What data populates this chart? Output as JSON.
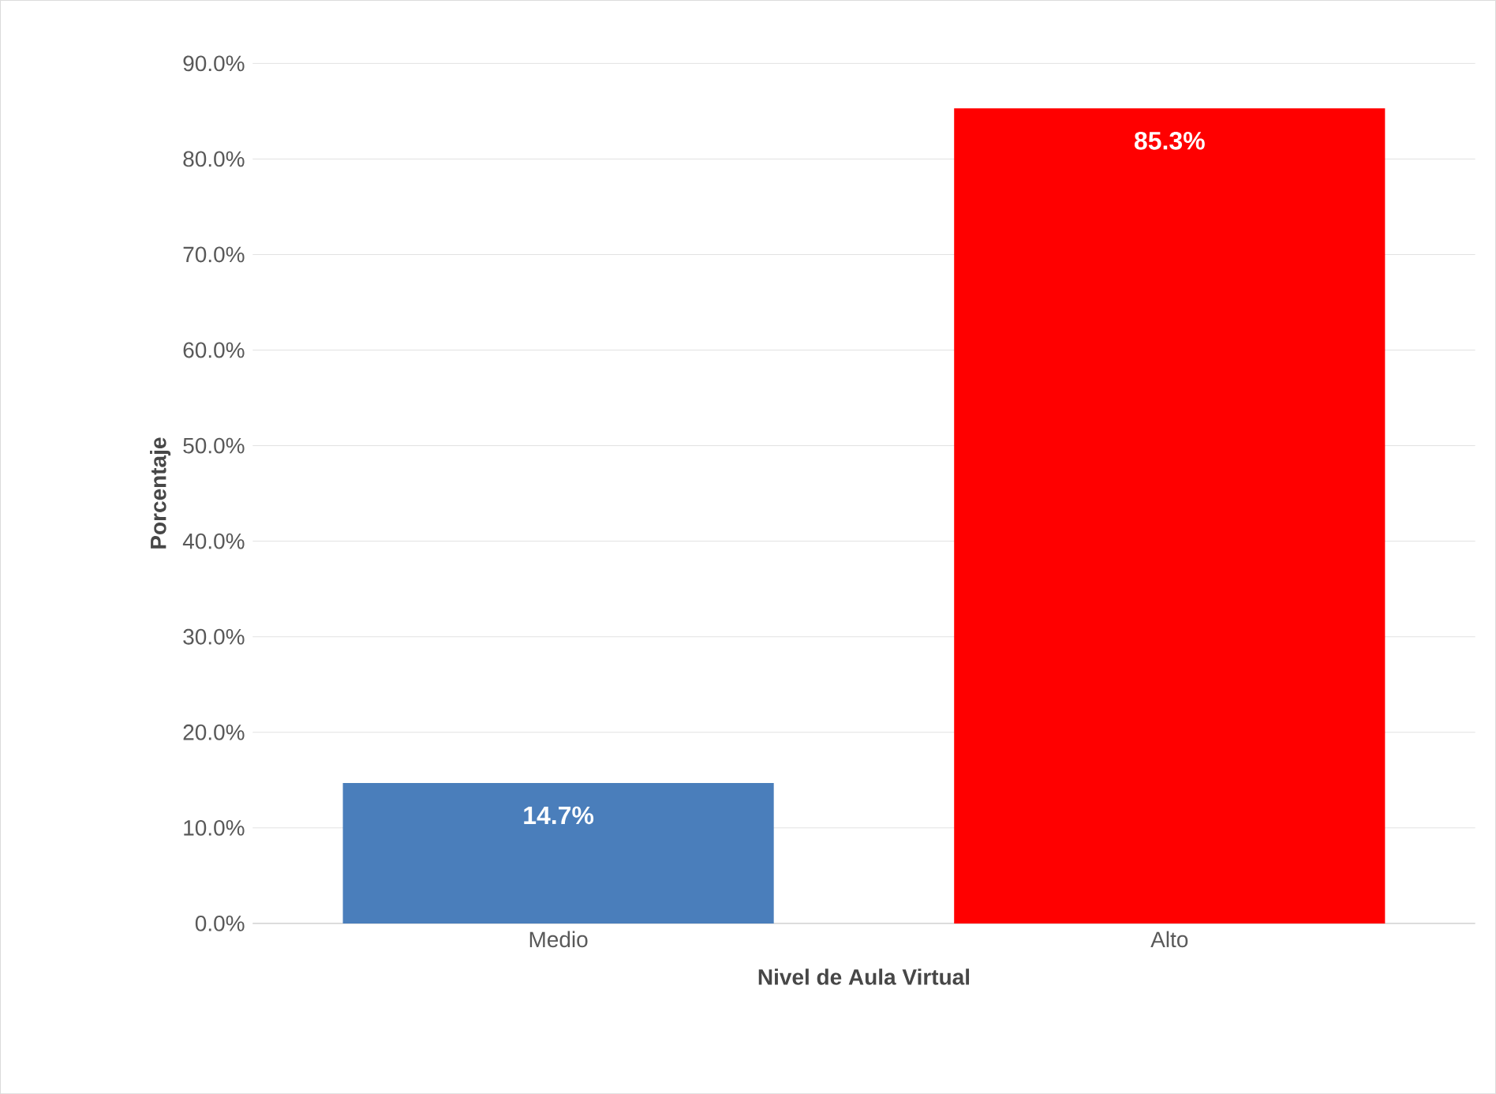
{
  "chart_data": {
    "type": "bar",
    "xlabel": "Nivel de Aula Virtual",
    "ylabel": "Porcentaje",
    "categories": [
      "Medio",
      "Alto"
    ],
    "values": [
      14.7,
      85.3
    ],
    "colors": [
      "#4a7ebb",
      "#ff0000"
    ],
    "value_labels": [
      "14.7%",
      "85.3%"
    ],
    "ylim": [
      0,
      90
    ],
    "yticks": [
      {
        "value": 0,
        "label": "0.0%"
      },
      {
        "value": 10,
        "label": "10.0%"
      },
      {
        "value": 20,
        "label": "20.0%"
      },
      {
        "value": 30,
        "label": "30.0%"
      },
      {
        "value": 40,
        "label": "40.0%"
      },
      {
        "value": 50,
        "label": "50.0%"
      },
      {
        "value": 60,
        "label": "60.0%"
      },
      {
        "value": 70,
        "label": "70.0%"
      },
      {
        "value": 80,
        "label": "80.0%"
      },
      {
        "value": 90,
        "label": "90.0%"
      }
    ],
    "grid": "y"
  }
}
